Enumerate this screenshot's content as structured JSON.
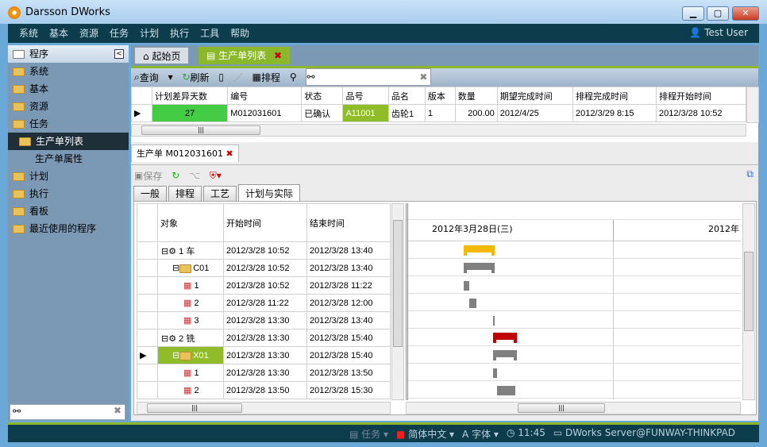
{
  "window": {
    "title": "Darsson DWorks",
    "min": "▁",
    "max": "▢",
    "close": "✕"
  },
  "menu": [
    "系统",
    "基本",
    "资源",
    "任务",
    "计划",
    "执行",
    "工具",
    "帮助"
  ],
  "user": "Test User",
  "sidebar": {
    "header": "程序",
    "items": [
      {
        "label": "系统",
        "level": 0
      },
      {
        "label": "基本",
        "level": 0
      },
      {
        "label": "资源",
        "level": 0
      },
      {
        "label": "任务",
        "level": 0
      },
      {
        "label": "生产单列表",
        "level": 1,
        "selected": true
      },
      {
        "label": "生产单属性",
        "level": 2
      },
      {
        "label": "计划",
        "level": 0
      },
      {
        "label": "执行",
        "level": 0
      },
      {
        "label": "看板",
        "level": 0
      },
      {
        "label": "最近使用的程序",
        "level": 0
      }
    ],
    "search_value": ""
  },
  "tabs": [
    {
      "label": "起始页"
    },
    {
      "label": "生产单列表",
      "active": true
    }
  ],
  "toolbar": {
    "query": "查询",
    "refresh": "刷新",
    "schedule": "排程",
    "search_value": ""
  },
  "list": {
    "columns": [
      "计划差异天数",
      "编号",
      "状态",
      "品号",
      "品名",
      "版本",
      "数量",
      "期望完成时间",
      "排程完成时间",
      "排程开始时间"
    ],
    "rows": [
      [
        "27",
        "M012031601",
        "已确认",
        "A11001",
        "齿轮1",
        "1",
        "200.00",
        "2012/4/25",
        "2012/3/29 8:15",
        "2012/3/28 10:52"
      ]
    ]
  },
  "detail": {
    "tab": "生产单 M012031601",
    "save": "保存",
    "subtabs": [
      "一般",
      "排程",
      "工艺",
      "计划与实际"
    ],
    "active_subtab": 3,
    "columns": [
      "对象",
      "开始时间",
      "结束时间"
    ],
    "gantt_header": [
      "2012年3月28日(三)",
      "2012年"
    ],
    "rows": [
      {
        "obj": "1 车",
        "level": 0,
        "type": "op",
        "start": "2012/3/28 10:52",
        "end": "2012/3/28 13:40",
        "bar": "summary",
        "color": "#f5b800"
      },
      {
        "obj": "C01",
        "level": 1,
        "type": "folder",
        "start": "2012/3/28 10:52",
        "end": "2012/3/28 13:40",
        "bar": "summary",
        "color": "#808080"
      },
      {
        "obj": "1",
        "level": 2,
        "type": "task",
        "start": "2012/3/28 10:52",
        "end": "2012/3/28 11:22",
        "bar": "task",
        "color": "#808080"
      },
      {
        "obj": "2",
        "level": 2,
        "type": "task",
        "start": "2012/3/28 11:22",
        "end": "2012/3/28 12:00",
        "bar": "task",
        "color": "#808080"
      },
      {
        "obj": "3",
        "level": 2,
        "type": "task",
        "start": "2012/3/28 13:30",
        "end": "2012/3/28 13:40",
        "bar": "task",
        "color": "#808080"
      },
      {
        "obj": "2 铣",
        "level": 0,
        "type": "op",
        "start": "2012/3/28 13:30",
        "end": "2012/3/28 15:40",
        "bar": "summary",
        "color": "#c00000"
      },
      {
        "obj": "X01",
        "level": 1,
        "type": "folder",
        "start": "2012/3/28 13:30",
        "end": "2012/3/28 15:40",
        "bar": "summary",
        "color": "#808080",
        "selected": true
      },
      {
        "obj": "1",
        "level": 2,
        "type": "task",
        "start": "2012/3/28 13:30",
        "end": "2012/3/28 13:50",
        "bar": "task",
        "color": "#808080"
      },
      {
        "obj": "2",
        "level": 2,
        "type": "task",
        "start": "2012/3/28 13:50",
        "end": "2012/3/28 15:30",
        "bar": "task",
        "color": "#808080"
      }
    ]
  },
  "status": {
    "task": "任务",
    "lang": "简体中文",
    "font": "字体",
    "time": "11:45",
    "server": "DWorks Server@FUNWAY-THINKPAD"
  },
  "colors": {
    "accent": "#8ab82a",
    "menubar": "#0d3d4d",
    "green_cell": "#44cc44",
    "selected_cell": "#8fbc28"
  }
}
